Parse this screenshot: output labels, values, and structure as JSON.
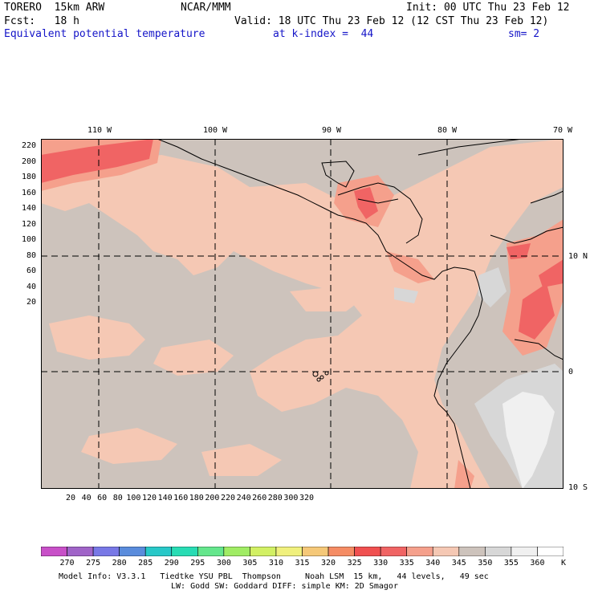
{
  "header": {
    "model": "TORERO  15km ARW",
    "center": "NCAR/MMM",
    "init": "Init: 00 UTC Thu 23 Feb 12",
    "fcst": "Fcst:   18 h",
    "valid": "Valid: 18 UTC Thu 23 Feb 12 (12 CST Thu 23 Feb 12)",
    "field": "Equivalent potential temperature",
    "level": "at k-index =  44",
    "smooth": "sm= 2"
  },
  "map": {
    "lon_labels": [
      "110 W",
      "100 W",
      "90 W",
      "80 W",
      "70 W"
    ],
    "lat_labels": [
      "10 N",
      "0",
      "10 S"
    ],
    "y_ticks": [
      "220",
      "200",
      "180",
      "160",
      "140",
      "120",
      "100",
      "80",
      "60",
      "40",
      "20"
    ],
    "x_ticks": [
      "20",
      "40",
      "60",
      "80",
      "100",
      "120",
      "140",
      "160",
      "180",
      "200",
      "220",
      "240",
      "260",
      "280",
      "300",
      "320"
    ],
    "ocean_color": "#cdc3bc",
    "land_color": "#cdc3bc"
  },
  "colorbar": {
    "labels": [
      "270",
      "275",
      "280",
      "285",
      "290",
      "295",
      "300",
      "305",
      "310",
      "315",
      "320",
      "325",
      "330",
      "335",
      "340",
      "345",
      "350",
      "355",
      "360",
      "K"
    ],
    "colors": [
      "#c850c8",
      "#a064c8",
      "#7878e6",
      "#5a8cdc",
      "#28c8c8",
      "#28dcb4",
      "#64e68c",
      "#a0ec64",
      "#d2f064",
      "#f0f07d",
      "#f5c878",
      "#f58c64",
      "#f05050",
      "#f06464",
      "#f5a08c",
      "#f5c8b4",
      "#cdc3bc",
      "#d7d7d7",
      "#f0f0f0",
      "#ffffff"
    ]
  },
  "footer": {
    "line1": "Model Info: V3.3.1   Tiedtke YSU PBL  Thompson     Noah LSM  15 km,   44 levels,   49 sec",
    "line2": "LW: Godd SW: Goddard DIFF: simple KM: 2D Smagor"
  }
}
